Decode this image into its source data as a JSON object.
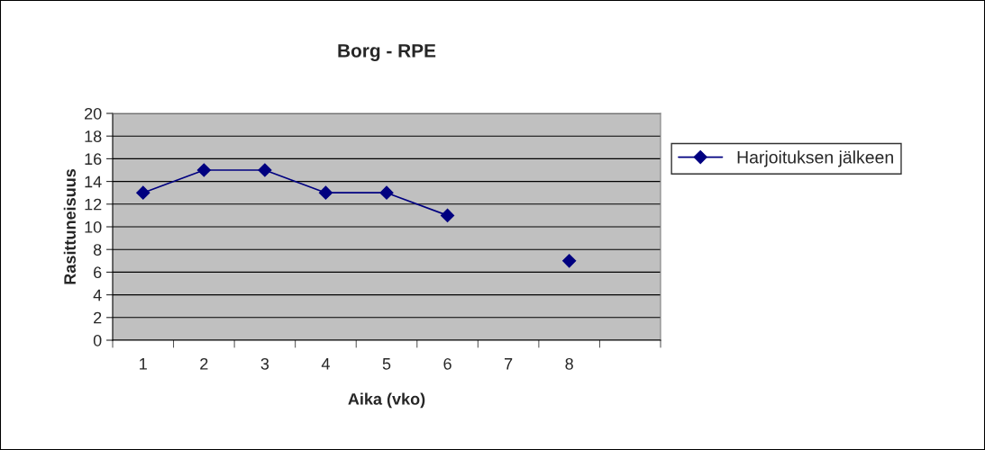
{
  "chart_data": {
    "type": "line",
    "title": "Borg - RPE",
    "xlabel": "Aika (vko)",
    "ylabel": "Rasittuneisuus",
    "categories": [
      "1",
      "2",
      "3",
      "4",
      "5",
      "6",
      "7",
      "8",
      null
    ],
    "series": [
      {
        "name": "Harjoituksen jälkeen",
        "color": "#000080",
        "values": [
          13,
          15,
          15,
          13,
          13,
          11,
          null,
          7,
          null
        ]
      }
    ],
    "ylim": [
      0,
      20
    ],
    "yticks": [
      0,
      2,
      4,
      6,
      8,
      10,
      12,
      14,
      16,
      18,
      20
    ],
    "grid": "y",
    "legend": "right",
    "marker": "diamond",
    "line_style": "solid"
  }
}
